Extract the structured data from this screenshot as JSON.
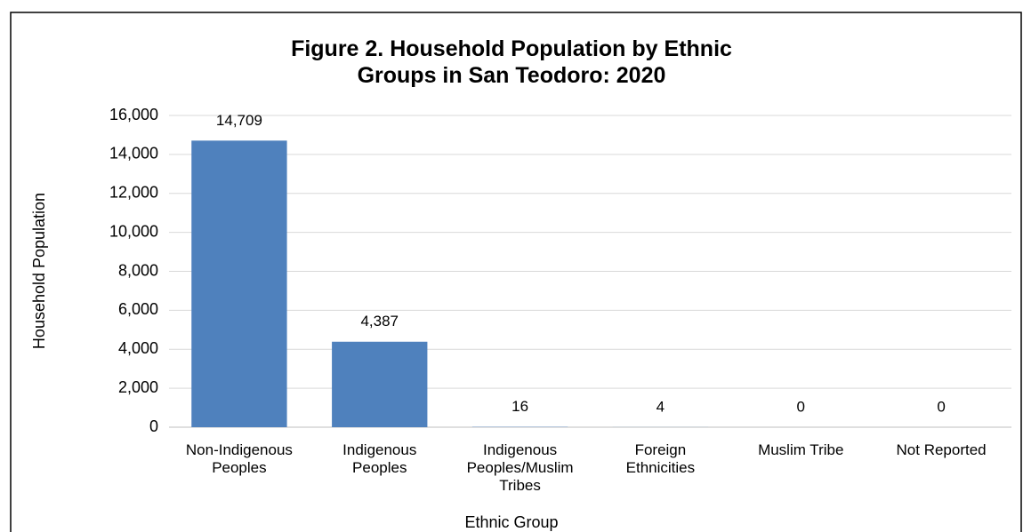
{
  "chart_data": {
    "type": "bar",
    "title": "Figure 2. Household Population by Ethnic Groups in San Teodoro: 2020",
    "categories": [
      "Non-Indigenous Peoples",
      "Indigenous Peoples",
      "Indigenous Peoples/Muslim Tribes",
      "Foreign Ethnicities",
      "Muslim Tribe",
      "Not Reported"
    ],
    "values": [
      14709,
      4387,
      16,
      4,
      0,
      0
    ],
    "value_labels": [
      "14,709",
      "4,387",
      "16",
      "4",
      "0",
      "0"
    ],
    "color": "#4f81bd",
    "x_label": "Ethnic Group",
    "y_label": "Household Population",
    "ylim": [
      0,
      16000
    ],
    "yticks": [
      0,
      {
        "value": 2000,
        "label": "2,000"
      },
      {
        "value": 4000,
        "label": "4,000"
      },
      {
        "value": 6000,
        "label": "6,000"
      },
      {
        "value": 8000,
        "label": "8,000"
      },
      {
        "value": 10000,
        "label": "10,000"
      },
      {
        "value": 12000,
        "label": "12,000"
      },
      {
        "value": 14000,
        "label": "14,000"
      },
      {
        "value": 16000,
        "label": "16,000"
      }
    ],
    "grid": true
  }
}
